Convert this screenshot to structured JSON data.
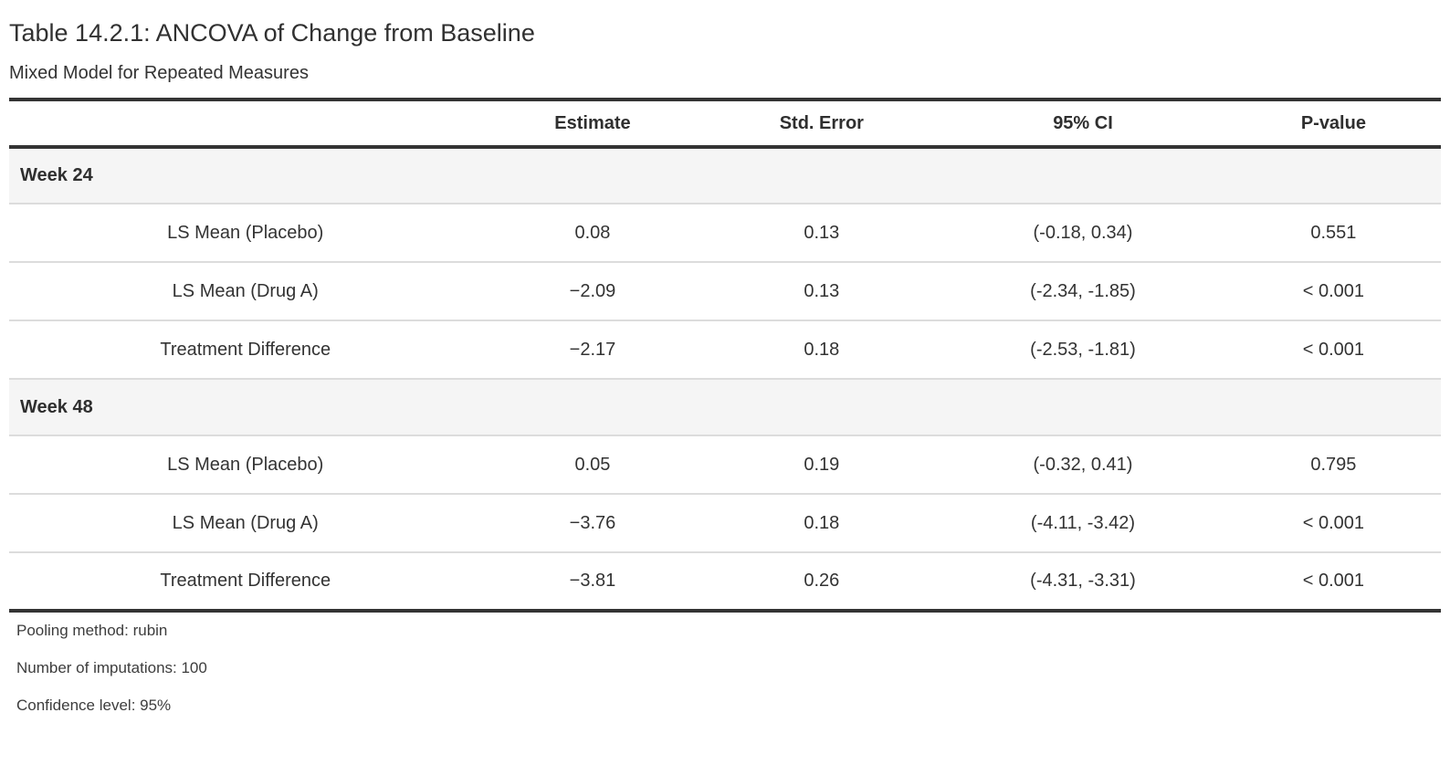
{
  "title": "Table 14.2.1: ANCOVA of Change from Baseline",
  "subtitle": "Mixed Model for Repeated Measures",
  "table": {
    "columns": [
      "",
      "Estimate",
      "Std. Error",
      "95% CI",
      "P-value"
    ],
    "groups": [
      {
        "label": "Week 24",
        "rows": [
          {
            "label": "LS Mean (Placebo)",
            "estimate": "0.08",
            "std_error": "0.13",
            "ci": "(-0.18, 0.34)",
            "p_value": "0.551"
          },
          {
            "label": "LS Mean (Drug A)",
            "estimate": "−2.09",
            "std_error": "0.13",
            "ci": "(-2.34, -1.85)",
            "p_value": "< 0.001"
          },
          {
            "label": "Treatment Difference",
            "estimate": "−2.17",
            "std_error": "0.18",
            "ci": "(-2.53, -1.81)",
            "p_value": "< 0.001"
          }
        ]
      },
      {
        "label": "Week 48",
        "rows": [
          {
            "label": "LS Mean (Placebo)",
            "estimate": "0.05",
            "std_error": "0.19",
            "ci": "(-0.32, 0.41)",
            "p_value": "0.795"
          },
          {
            "label": "LS Mean (Drug A)",
            "estimate": "−3.76",
            "std_error": "0.18",
            "ci": "(-4.11, -3.42)",
            "p_value": "< 0.001"
          },
          {
            "label": "Treatment Difference",
            "estimate": "−3.81",
            "std_error": "0.26",
            "ci": "(-4.31, -3.31)",
            "p_value": "< 0.001"
          }
        ]
      }
    ]
  },
  "footnotes": [
    "Pooling method: rubin",
    "Number of imputations: 100",
    "Confidence level: 95%"
  ],
  "colors": {
    "rule_dark": "#343434",
    "rule_light": "#dcdcdc",
    "group_band_bg": "#f5f5f5",
    "text": "#333333",
    "background": "#ffffff"
  }
}
